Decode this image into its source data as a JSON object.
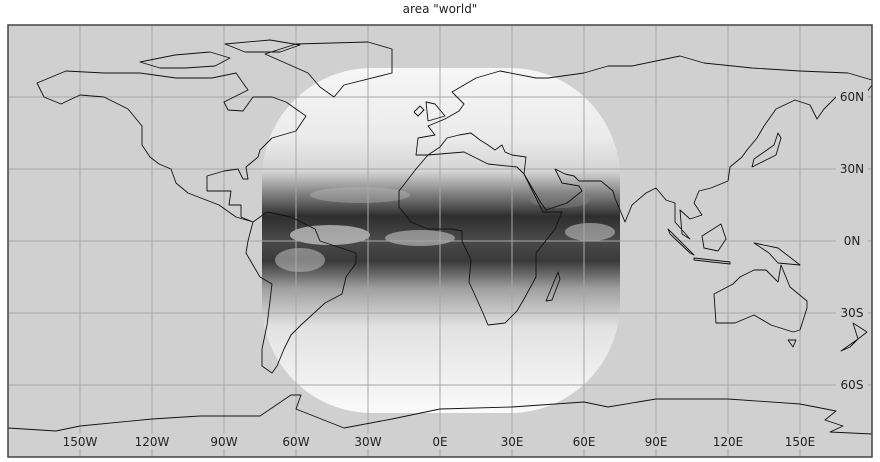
{
  "title": "area  \"world\"",
  "map": {
    "extent": {
      "lon": [
        -180,
        180
      ],
      "lat": [
        -90,
        90
      ]
    },
    "background_color": "#d0d0d0",
    "grid_color": "#a8a8a8",
    "coastline_color": "#111111",
    "frame_color": "#444444",
    "imagery": "grayscale satellite disk centered at 0E 0N"
  },
  "lon_gridlines": [
    -150,
    -120,
    -90,
    -60,
    -30,
    0,
    30,
    60,
    90,
    120,
    150
  ],
  "lat_gridlines": [
    60,
    30,
    0,
    -30,
    -60
  ],
  "lon_labels": [
    "150W",
    "120W",
    "90W",
    "60W",
    "30W",
    "0E",
    "30E",
    "60E",
    "90E",
    "120E",
    "150E"
  ],
  "lat_labels": [
    "60N",
    "30N",
    "0N",
    "30S",
    "60S"
  ]
}
